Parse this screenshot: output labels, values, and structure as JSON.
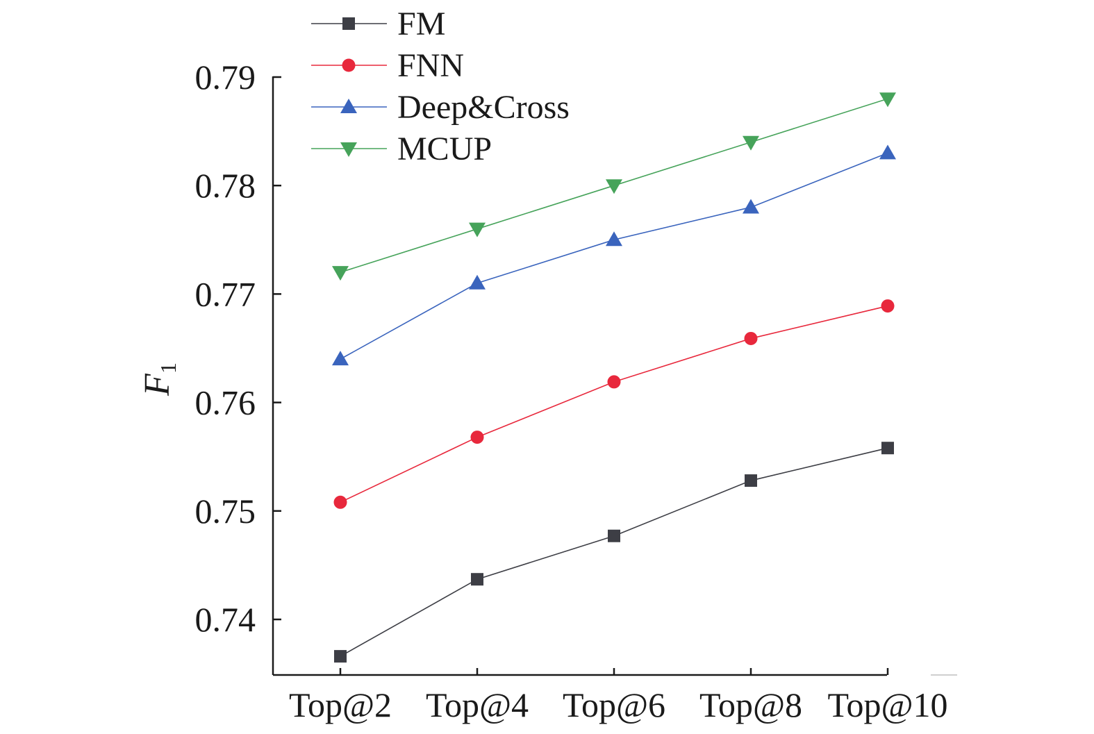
{
  "chart_data": {
    "type": "line",
    "title": "",
    "xlabel": "",
    "ylabel": "F",
    "ylabel_subscript": "1",
    "categories": [
      "Top@2",
      "Top@4",
      "Top@6",
      "Top@8",
      "Top@10"
    ],
    "ylim": [
      0.735,
      0.79
    ],
    "yticks": [
      0.74,
      0.75,
      0.76,
      0.77,
      0.78,
      0.79
    ],
    "ytick_labels": [
      "0.74",
      "0.75",
      "0.76",
      "0.77",
      "0.78",
      "0.79"
    ],
    "grid": false,
    "legend_position": "top-left",
    "series": [
      {
        "name": "FM",
        "marker": "square",
        "color": "#3d3e45",
        "values": [
          0.7366,
          0.7437,
          0.7477,
          0.7528,
          0.7558
        ]
      },
      {
        "name": "FNN",
        "marker": "circle",
        "color": "#e8283c",
        "values": [
          0.7508,
          0.7568,
          0.7619,
          0.7659,
          0.7689
        ]
      },
      {
        "name": "Deep&Cross",
        "marker": "triangle-up",
        "color": "#3a64bd",
        "values": [
          0.764,
          0.771,
          0.775,
          0.778,
          0.783
        ]
      },
      {
        "name": "MCUP",
        "marker": "triangle-down",
        "color": "#46a35a",
        "values": [
          0.772,
          0.776,
          0.78,
          0.784,
          0.788
        ]
      }
    ]
  }
}
